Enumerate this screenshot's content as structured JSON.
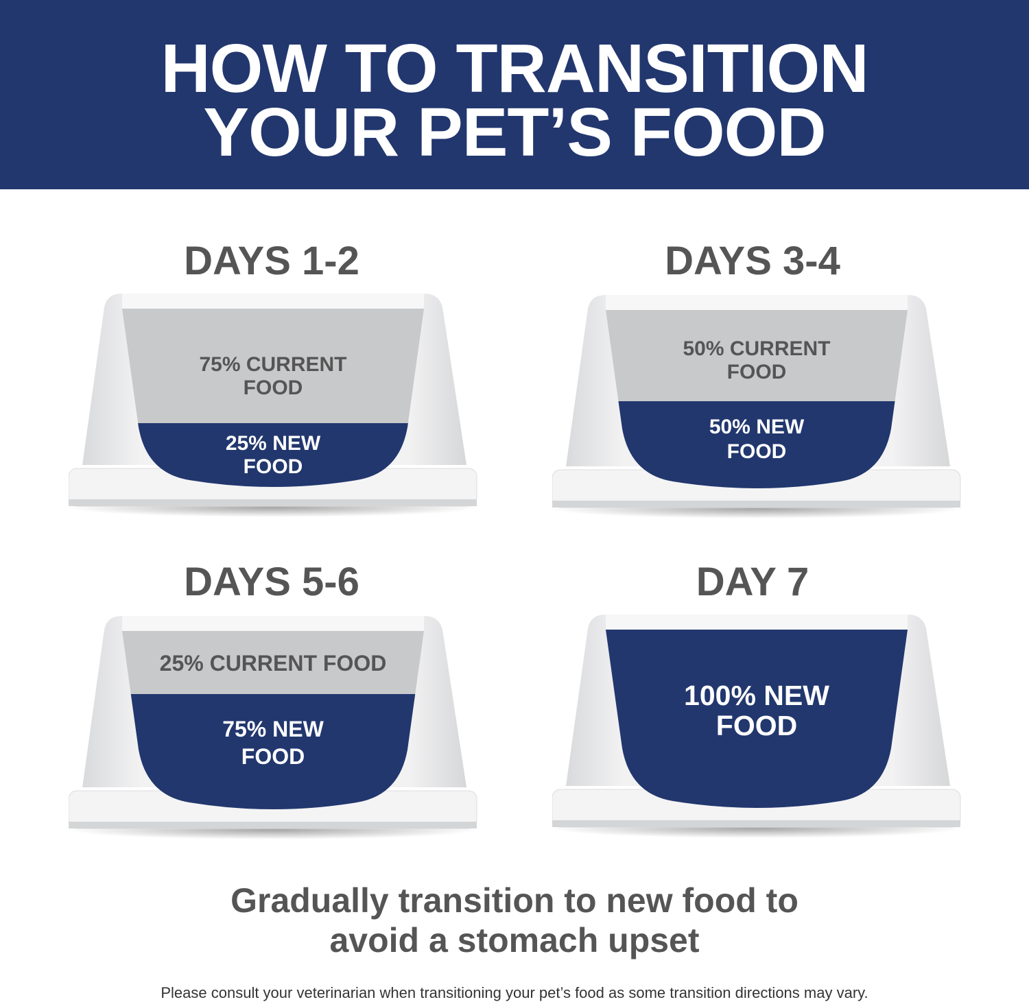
{
  "header": {
    "title_line1": "HOW TO TRANSITION",
    "title_line2": "YOUR PET’S FOOD"
  },
  "colors": {
    "brand_blue": "#22376e",
    "current_food_gray": "#c8c9cb",
    "text_gray": "#555555"
  },
  "stages": [
    {
      "heading": "DAYS 1-2",
      "current_label": [
        "75% CURRENT",
        "FOOD"
      ],
      "new_label": [
        "25% NEW",
        "FOOD"
      ],
      "new_food_percent": 25
    },
    {
      "heading": "DAYS 3-4",
      "current_label": [
        "50% CURRENT",
        "FOOD"
      ],
      "new_label": [
        "50% NEW",
        "FOOD"
      ],
      "new_food_percent": 50
    },
    {
      "heading": "DAYS 5-6",
      "current_label": [
        "25% CURRENT FOOD"
      ],
      "new_label": [
        "75% NEW",
        "FOOD"
      ],
      "new_food_percent": 75
    },
    {
      "heading": "DAY 7",
      "current_label": [],
      "new_label": [
        "100% NEW",
        "FOOD"
      ],
      "new_food_percent": 100
    }
  ],
  "tagline": {
    "line1": "Gradually transition to new food to",
    "line2": "avoid a stomach upset"
  },
  "note": "Please consult your veterinarian when transitioning your pet’s food as some transition directions may vary."
}
